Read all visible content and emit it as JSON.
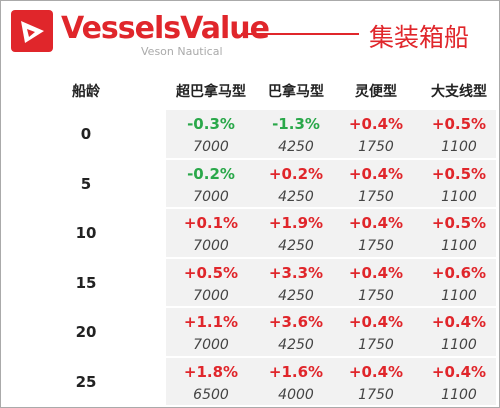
{
  "header": {
    "logo": "VesselsValue",
    "sublogo": "Veson Nautical",
    "title": "集装箱船"
  },
  "table": {
    "columns": [
      "船龄",
      "超巴拿马型",
      "巴拿马型",
      "灵便型",
      "大支线型"
    ],
    "rows": [
      {
        "age": "0",
        "cells": [
          {
            "change": "-0.3%",
            "value": "7000"
          },
          {
            "change": "-1.3%",
            "value": "4250"
          },
          {
            "change": "+0.4%",
            "value": "1750"
          },
          {
            "change": "+0.5%",
            "value": "1100"
          }
        ]
      },
      {
        "age": "5",
        "cells": [
          {
            "change": "-0.2%",
            "value": "7000"
          },
          {
            "change": "+0.2%",
            "value": "4250"
          },
          {
            "change": "+0.4%",
            "value": "1750"
          },
          {
            "change": "+0.5%",
            "value": "1100"
          }
        ]
      },
      {
        "age": "10",
        "cells": [
          {
            "change": "+0.1%",
            "value": "7000"
          },
          {
            "change": "+1.9%",
            "value": "4250"
          },
          {
            "change": "+0.4%",
            "value": "1750"
          },
          {
            "change": "+0.5%",
            "value": "1100"
          }
        ]
      },
      {
        "age": "15",
        "cells": [
          {
            "change": "+0.5%",
            "value": "7000"
          },
          {
            "change": "+3.3%",
            "value": "4250"
          },
          {
            "change": "+0.4%",
            "value": "1750"
          },
          {
            "change": "+0.6%",
            "value": "1100"
          }
        ]
      },
      {
        "age": "20",
        "cells": [
          {
            "change": "+1.1%",
            "value": "7000"
          },
          {
            "change": "+3.6%",
            "value": "4250"
          },
          {
            "change": "+0.4%",
            "value": "1750"
          },
          {
            "change": "+0.4%",
            "value": "1100"
          }
        ]
      },
      {
        "age": "25",
        "cells": [
          {
            "change": "+1.8%",
            "value": "6500"
          },
          {
            "change": "+1.6%",
            "value": "4000"
          },
          {
            "change": "+0.4%",
            "value": "1750"
          },
          {
            "change": "+0.4%",
            "value": "1100"
          }
        ]
      }
    ]
  }
}
